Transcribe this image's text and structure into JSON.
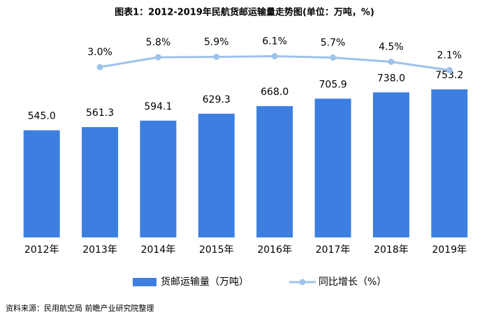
{
  "chart_data": {
    "type": "bar_line",
    "title": "图表1：2012-2019年民航货邮运输量走势图(单位：万吨，%)",
    "categories": [
      "2012年",
      "2013年",
      "2014年",
      "2015年",
      "2016年",
      "2017年",
      "2018年",
      "2019年"
    ],
    "series": [
      {
        "name": "货邮运输量（万吨）",
        "type": "bar",
        "color": "#3d7fe0",
        "values": [
          545.0,
          561.3,
          594.1,
          629.3,
          668.0,
          705.9,
          738.0,
          753.2
        ],
        "value_labels": [
          "545.0",
          "561.3",
          "594.1",
          "629.3",
          "668.0",
          "705.9",
          "738.0",
          "753.2"
        ]
      },
      {
        "name": "同比增长（%）",
        "type": "line",
        "axis": "y2",
        "color": "#9ec3ea",
        "values": [
          null,
          3.0,
          5.8,
          5.9,
          6.1,
          5.7,
          4.5,
          2.1
        ],
        "value_labels": [
          null,
          "3.0%",
          "5.8%",
          "5.9%",
          "6.1%",
          "5.7%",
          "4.5%",
          "2.1%"
        ]
      }
    ],
    "ylim": [
      0,
      1000
    ],
    "y2lim": [
      0,
      10
    ],
    "source": "资料来源：民用航空局 前瞻产业研究院整理"
  }
}
